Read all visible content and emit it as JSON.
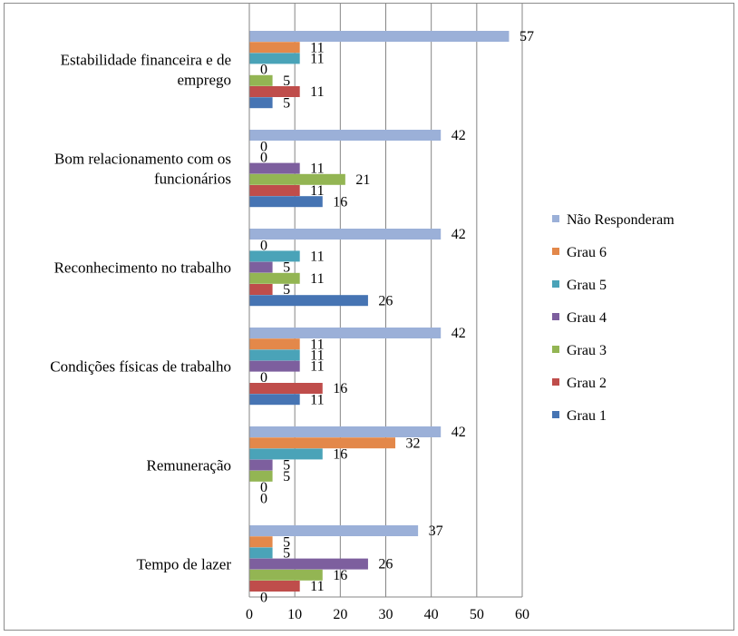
{
  "chart_data": {
    "type": "bar",
    "orientation": "horizontal",
    "title": "",
    "xlabel": "",
    "ylabel": "",
    "xlim": [
      0,
      60
    ],
    "x_ticks": [
      0,
      10,
      20,
      30,
      40,
      50,
      60
    ],
    "grid": "vertical",
    "legend_position": "right",
    "categories": [
      {
        "lines": [
          "Estabilidade financeira e de",
          "emprego"
        ]
      },
      {
        "lines": [
          "Bom relacionamento com os",
          "funcionários"
        ]
      },
      {
        "lines": [
          "Reconhecimento no trabalho"
        ]
      },
      {
        "lines": [
          "Condições físicas de trabalho"
        ]
      },
      {
        "lines": [
          "Remuneração"
        ]
      },
      {
        "lines": [
          "Tempo de lazer"
        ]
      }
    ],
    "series": [
      {
        "name": "Não Responderam",
        "color": "#9bb0d8",
        "values": [
          57,
          42,
          42,
          42,
          42,
          37
        ]
      },
      {
        "name": "Grau 6",
        "color": "#e3884a",
        "values": [
          11,
          0,
          0,
          11,
          32,
          5
        ]
      },
      {
        "name": "Grau 5",
        "color": "#4aa3b8",
        "values": [
          11,
          0,
          11,
          11,
          16,
          5
        ]
      },
      {
        "name": "Grau 4",
        "color": "#7d5f9e",
        "values": [
          0,
          11,
          5,
          11,
          5,
          26
        ]
      },
      {
        "name": "Grau 3",
        "color": "#93b553",
        "values": [
          5,
          21,
          11,
          0,
          5,
          16
        ]
      },
      {
        "name": "Grau 2",
        "color": "#bf4d4b",
        "values": [
          11,
          11,
          5,
          16,
          0,
          11
        ]
      },
      {
        "name": "Grau 1",
        "color": "#4674b3",
        "values": [
          5,
          16,
          26,
          11,
          0,
          0
        ]
      }
    ],
    "bar_labels": [
      [
        "57",
        "11",
        "11",
        "0",
        "5",
        "11",
        "5"
      ],
      [
        "42",
        "0",
        "0",
        "11",
        "21",
        "11",
        "16"
      ],
      [
        "42",
        "0",
        "11",
        "5",
        "11",
        "5",
        "26"
      ],
      [
        "42",
        "11",
        "11",
        "11",
        "0",
        "16",
        "11"
      ],
      [
        "42",
        "32",
        "16",
        "5",
        "5",
        "0",
        "0"
      ],
      [
        "37",
        "5",
        "5",
        "26",
        "16",
        "11",
        "0"
      ]
    ]
  }
}
